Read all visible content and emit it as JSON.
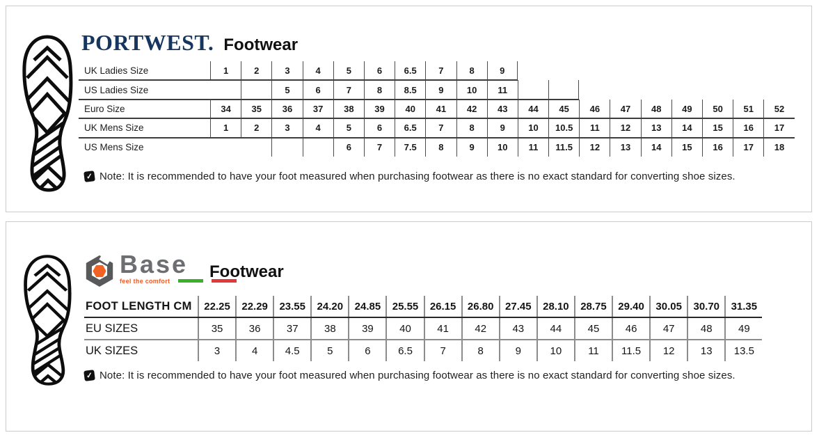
{
  "panel_portwest": {
    "brand": "PORTWEST.",
    "product_line": "Footwear",
    "note": "Note: It is recommended to have your foot measured when purchasing footwear as there is no exact standard for converting shoe sizes.",
    "note_icon": "checked-note-icon",
    "table": {
      "rows": [
        {
          "label": "UK Ladies Size",
          "cells": [
            "1",
            "2",
            "3",
            "4",
            "5",
            "6",
            "6.5",
            "7",
            "8",
            "9",
            "",
            "",
            "",
            "",
            "",
            "",
            "",
            "",
            ""
          ],
          "border_start": 0,
          "border_end": 9,
          "right_edge": true,
          "underline_end": 9
        },
        {
          "label": "US Ladies Size",
          "cells": [
            "",
            "",
            "5",
            "6",
            "7",
            "8",
            "8.5",
            "9",
            "10",
            "11",
            "",
            "",
            "",
            "",
            "",
            "",
            "",
            "",
            ""
          ],
          "border_start": 0,
          "border_end": 11,
          "right_edge": true,
          "no_left_edge": true,
          "underline_end": 11
        },
        {
          "label": "Euro Size",
          "cells": [
            "34",
            "35",
            "36",
            "37",
            "38",
            "39",
            "40",
            "41",
            "42",
            "43",
            "44",
            "45",
            "46",
            "47",
            "48",
            "49",
            "50",
            "51",
            "52"
          ],
          "border_start": 0,
          "border_end": 18,
          "right_edge": false,
          "underline_end": 18
        },
        {
          "label": "UK Mens Size",
          "cells": [
            "1",
            "2",
            "3",
            "4",
            "5",
            "6",
            "6.5",
            "7",
            "8",
            "9",
            "10",
            "10.5",
            "11",
            "12",
            "13",
            "14",
            "15",
            "16",
            "17"
          ],
          "border_start": 0,
          "border_end": 18,
          "right_edge": false,
          "underline_end": 18
        },
        {
          "label": "US Mens Size",
          "cells": [
            "",
            "",
            "",
            "",
            "6",
            "7",
            "7.5",
            "8",
            "9",
            "10",
            "11",
            "11.5",
            "12",
            "13",
            "14",
            "15",
            "16",
            "17",
            "18"
          ],
          "border_start": 2,
          "border_end": 18,
          "right_edge": false,
          "underline_end": -1
        }
      ]
    }
  },
  "panel_base": {
    "brand": "Base",
    "tagline": "feel the comfort",
    "product_line": "Footwear",
    "note": "Note: It is recommended to have your foot measured when purchasing footwear as there is no exact standard for converting shoe sizes.",
    "note_icon": "checked-note-icon",
    "table": {
      "rows": [
        {
          "label": "FOOT LENGTH CM",
          "cells": [
            "22.25",
            "22.29",
            "23.55",
            "24.20",
            "24.85",
            "25.55",
            "26.15",
            "26.80",
            "27.45",
            "28.10",
            "28.75",
            "29.40",
            "30.05",
            "30.70",
            "31.35"
          ]
        },
        {
          "label": "EU SIZES",
          "cells": [
            "35",
            "36",
            "37",
            "38",
            "39",
            "40",
            "41",
            "42",
            "43",
            "44",
            "45",
            "46",
            "47",
            "48",
            "49"
          ]
        },
        {
          "label": "UK SIZES",
          "cells": [
            "3",
            "4",
            "4.5",
            "5",
            "6",
            "6.5",
            "7",
            "8",
            "9",
            "10",
            "11",
            "11.5",
            "12",
            "13",
            "13.5"
          ]
        }
      ]
    }
  },
  "colors": {
    "portwest_navy": "#16355f",
    "base_gray": "#6d6e71",
    "base_orange": "#f26222",
    "tagline_orange": "#f15a24",
    "flag_green": "#3fae2a",
    "flag_red": "#e2373b",
    "panel_border": "#cbcbcb"
  }
}
